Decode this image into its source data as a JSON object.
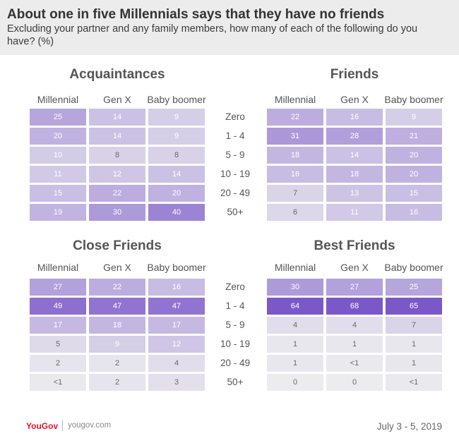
{
  "header": {
    "title": "About one in five Millennials says that they have no friends",
    "subtitle": "Excluding your partner and any family members, how many of each of the following do you have? (%)"
  },
  "chart_data": {
    "type": "heatmap",
    "row_labels": [
      "Zero",
      "1 - 4",
      "5 - 9",
      "10 - 19",
      "20 - 49",
      "50+"
    ],
    "column_labels": [
      "Millennial",
      "Gen X",
      "Baby boomer"
    ],
    "colors": {
      "scale_low": "#ececef",
      "scale_high": "#7b58c8",
      "text_light": "#ffffff",
      "text_dark": "#6a6a6a"
    },
    "panels": [
      {
        "title": "Acquaintances",
        "columns": [
          "Millennial",
          "Gen X",
          "Baby boomer"
        ],
        "values": [
          [
            "25",
            "14",
            "9"
          ],
          [
            "20",
            "14",
            "9"
          ],
          [
            "10",
            "8",
            "8"
          ],
          [
            "11",
            "12",
            "14"
          ],
          [
            "15",
            "22",
            "20"
          ],
          [
            "19",
            "30",
            "40"
          ]
        ]
      },
      {
        "title": "Friends",
        "columns": [
          "Millennial",
          "Gen X",
          "Baby boomer"
        ],
        "values": [
          [
            "22",
            "16",
            "9"
          ],
          [
            "31",
            "28",
            "21"
          ],
          [
            "18",
            "14",
            "20"
          ],
          [
            "16",
            "18",
            "20"
          ],
          [
            "7",
            "13",
            "15"
          ],
          [
            "6",
            "11",
            "16"
          ]
        ]
      },
      {
        "title": "Close Friends",
        "columns": [
          "Millennial",
          "Gen X",
          "Baby boomer"
        ],
        "values": [
          [
            "27",
            "22",
            "16"
          ],
          [
            "49",
            "47",
            "47"
          ],
          [
            "17",
            "18",
            "17"
          ],
          [
            "5",
            "9",
            "12"
          ],
          [
            "2",
            "2",
            "4"
          ],
          [
            "<1",
            "2",
            "3"
          ]
        ]
      },
      {
        "title": "Best Friends",
        "columns": [
          "Millennial",
          "Gen X",
          "Baby boomer"
        ],
        "values": [
          [
            "30",
            "27",
            "25"
          ],
          [
            "64",
            "68",
            "65"
          ],
          [
            "4",
            "4",
            "7"
          ],
          [
            "1",
            "1",
            "1"
          ],
          [
            "1",
            "<1",
            "1"
          ],
          [
            "0",
            "0",
            "<1"
          ]
        ]
      }
    ]
  },
  "footer": {
    "brand": "YouGov",
    "url": "yougov.com",
    "date": "July 3 - 5, 2019"
  }
}
